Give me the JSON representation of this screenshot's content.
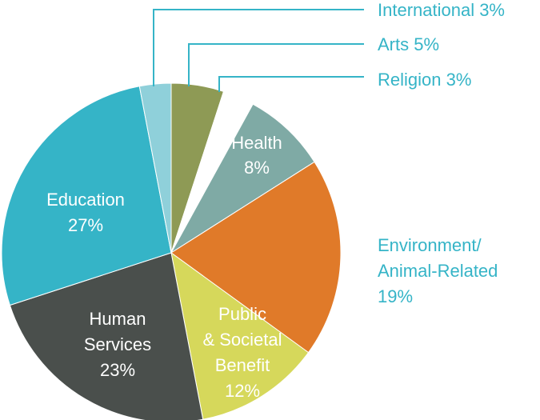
{
  "chart_data": {
    "type": "pie",
    "title": "",
    "colors": {
      "International": "#8fd0da",
      "Arts": "#8e9a55",
      "Religion": "#ffffff",
      "Health": "#7faaa5",
      "Environment/Animal-Related": "#e07a29",
      "Public & Societal Benefit": "#d6d85b",
      "Human Services": "#4a4f4c",
      "Education": "#35b4c7",
      "external_label_color": "#35b4c7"
    },
    "slices": [
      {
        "key": "arts",
        "name": "Arts",
        "value": 5,
        "lines": [
          "Arts 5%"
        ],
        "placement": "outside"
      },
      {
        "key": "religion",
        "name": "Religion",
        "value": 3,
        "lines": [
          "Religion 3%"
        ],
        "placement": "outside"
      },
      {
        "key": "health",
        "name": "Health",
        "value": 8,
        "lines": [
          "Health",
          "8%"
        ],
        "placement": "inside"
      },
      {
        "key": "environment",
        "name": "Environment/Animal-Related",
        "value": 19,
        "lines": [
          "Environment/",
          "Animal-Related",
          "19%"
        ],
        "placement": "outside"
      },
      {
        "key": "public",
        "name": "Public & Societal Benefit",
        "value": 12,
        "lines": [
          "Public",
          "& Societal",
          "Benefit",
          "12%"
        ],
        "placement": "inside"
      },
      {
        "key": "human",
        "name": "Human Services",
        "value": 23,
        "lines": [
          "Human",
          "Services",
          "23%"
        ],
        "placement": "inside"
      },
      {
        "key": "education",
        "name": "Education",
        "value": 27,
        "lines": [
          "Education",
          "27%"
        ],
        "placement": "inside"
      },
      {
        "key": "international",
        "name": "International",
        "value": 3,
        "lines": [
          "International 3%"
        ],
        "placement": "outside"
      }
    ]
  }
}
